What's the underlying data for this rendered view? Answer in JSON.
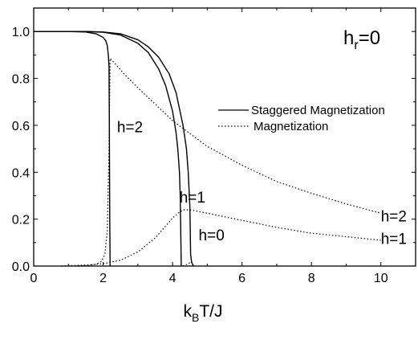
{
  "chart_data": {
    "type": "line",
    "title": "",
    "xlabel": {
      "main": "k",
      "sub": "B",
      "rest": "T/J"
    },
    "ylabel": "",
    "xlim": [
      0,
      11
    ],
    "ylim": [
      0,
      1.1
    ],
    "xticks": [
      0,
      2,
      4,
      6,
      8,
      10
    ],
    "yticks": [
      0.0,
      0.2,
      0.4,
      0.6,
      0.8,
      1.0
    ],
    "xtick_labels": [
      "0",
      "2",
      "4",
      "6",
      "8",
      "10"
    ],
    "ytick_labels": [
      "0.0",
      "0.2",
      "0.4",
      "0.6",
      "0.8",
      "1.0"
    ],
    "grid": false,
    "legend_placement": "top-right",
    "legend": [
      {
        "label": "Staggered Magnetization",
        "style": "solid"
      },
      {
        "label": "Magnetization",
        "style": "dotted"
      }
    ],
    "inset_label": {
      "main": "h",
      "sub": "r",
      "rest": "=0"
    },
    "series": [
      {
        "style": "solid",
        "color": "#000000",
        "x": [
          0,
          1.0,
          1.5,
          1.8,
          2.0,
          2.08,
          2.12,
          2.15,
          2.17,
          2.18,
          2.19,
          2.2,
          2.2
        ],
        "y": [
          1.0,
          1.0,
          0.998,
          0.99,
          0.975,
          0.96,
          0.94,
          0.9,
          0.85,
          0.6,
          0.2,
          0.02,
          0.0
        ]
      },
      {
        "style": "solid",
        "color": "#000000",
        "x": [
          0,
          1.5,
          2.0,
          2.5,
          3.0,
          3.3,
          3.6,
          3.8,
          4.0,
          4.1,
          4.15,
          4.2,
          4.22,
          4.24,
          4.25
        ],
        "y": [
          1.0,
          1.0,
          0.997,
          0.985,
          0.95,
          0.91,
          0.84,
          0.77,
          0.66,
          0.57,
          0.5,
          0.4,
          0.3,
          0.1,
          0.0
        ]
      },
      {
        "style": "solid",
        "color": "#000000",
        "x": [
          0,
          1.5,
          2.0,
          2.5,
          3.0,
          3.3,
          3.6,
          3.9,
          4.1,
          4.3,
          4.4,
          4.45,
          4.5,
          4.52,
          4.55,
          4.6
        ],
        "y": [
          1.0,
          1.0,
          0.998,
          0.99,
          0.965,
          0.935,
          0.89,
          0.82,
          0.74,
          0.6,
          0.5,
          0.4,
          0.25,
          0.05,
          0.015,
          0.0
        ]
      },
      {
        "style": "dotted",
        "color": "#000000",
        "x": [
          1.2,
          1.6,
          1.8,
          1.95,
          2.05,
          2.12,
          2.17,
          2.2,
          2.3,
          2.6,
          3.0,
          3.5,
          4.0,
          4.5,
          5.0,
          6.0,
          7.0,
          8.0,
          9.0,
          10.0
        ],
        "y": [
          0.0,
          0.003,
          0.008,
          0.02,
          0.05,
          0.15,
          0.5,
          0.885,
          0.87,
          0.82,
          0.76,
          0.69,
          0.62,
          0.565,
          0.51,
          0.43,
          0.36,
          0.31,
          0.265,
          0.225
        ]
      },
      {
        "style": "dotted",
        "color": "#000000",
        "x": [
          0.8,
          1.5,
          2.0,
          2.5,
          3.0,
          3.5,
          3.8,
          4.0,
          4.2,
          4.3,
          4.5,
          5.0,
          6.0,
          7.0,
          8.0,
          9.0,
          10.0
        ],
        "y": [
          0.0,
          0.004,
          0.01,
          0.025,
          0.06,
          0.12,
          0.17,
          0.205,
          0.23,
          0.24,
          0.24,
          0.225,
          0.195,
          0.165,
          0.14,
          0.125,
          0.11
        ]
      },
      {
        "style": "dotted",
        "color": "#000000",
        "x": [
          4.3,
          4.45,
          4.55,
          4.6
        ],
        "y": [
          0.0,
          0.01,
          0.02,
          0.0
        ]
      }
    ],
    "annotations": [
      {
        "text": "h=2",
        "x": 2.4,
        "y": 0.57
      },
      {
        "text": "h=1",
        "x": 4.2,
        "y": 0.27
      },
      {
        "text": "h=0",
        "x": 4.75,
        "y": 0.11
      },
      {
        "text": "h=2",
        "x": 10.0,
        "y": 0.19
      },
      {
        "text": "h=1",
        "x": 10.0,
        "y": 0.095
      }
    ]
  }
}
